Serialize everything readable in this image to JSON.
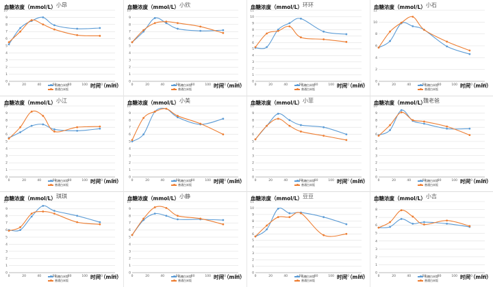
{
  "page": {
    "ylabel": "血糖浓度（mmol/L）",
    "xlabel": "时间（min）",
    "legend": [
      "低糖白米饭",
      "普通白米饭"
    ]
  },
  "colors": {
    "series_low_sugar": "#5B9BD5",
    "series_normal": "#ED7D31",
    "grid": "#d9d9d9",
    "axis": "#888888",
    "tick": "#555555"
  },
  "chart_data": [
    {
      "type": "line",
      "title": "小昂",
      "xlabel": "时间（min）",
      "ylabel": "血糖浓度（mmol/L）",
      "xlim": [
        0,
        140
      ],
      "ylim": [
        0,
        10
      ],
      "xticks": [
        0,
        20,
        40,
        60,
        80,
        100,
        120,
        140
      ],
      "yticks": [
        0,
        1,
        2,
        3,
        4,
        5,
        6,
        7,
        8,
        9,
        10
      ],
      "series": [
        {
          "name": "低糖白米饭",
          "x": [
            0,
            15,
            30,
            45,
            60,
            90,
            120
          ],
          "values": [
            5.2,
            7.5,
            8.5,
            9.0,
            7.9,
            7.4,
            7.5
          ]
        },
        {
          "name": "普通白米饭",
          "x": [
            0,
            15,
            30,
            45,
            60,
            90,
            120
          ],
          "values": [
            5.5,
            7.0,
            8.6,
            8.0,
            7.3,
            6.5,
            6.4
          ]
        }
      ]
    },
    {
      "type": "line",
      "title": "小欣",
      "xlabel": "时间（min）",
      "ylabel": "血糖浓度（mmol/L）",
      "xlim": [
        0,
        140
      ],
      "ylim": [
        0,
        10
      ],
      "xticks": [
        0,
        20,
        40,
        60,
        80,
        100,
        120,
        140
      ],
      "yticks": [
        0,
        1,
        2,
        3,
        4,
        5,
        6,
        7,
        8,
        9,
        10
      ],
      "series": [
        {
          "name": "低糖白米饭",
          "x": [
            0,
            15,
            30,
            45,
            60,
            90,
            120
          ],
          "values": [
            5.5,
            7.0,
            8.9,
            8.2,
            7.4,
            7.1,
            7.2
          ]
        },
        {
          "name": "普通白米饭",
          "x": [
            0,
            15,
            30,
            45,
            60,
            90,
            120
          ],
          "values": [
            5.5,
            7.2,
            8.2,
            8.4,
            8.2,
            7.7,
            6.8
          ]
        }
      ]
    },
    {
      "type": "line",
      "title": "环环",
      "xlabel": "时间（min）",
      "ylabel": "血糖浓度（mmol/L）",
      "xlim": [
        0,
        140
      ],
      "ylim": [
        0,
        11
      ],
      "xticks": [
        0,
        20,
        40,
        60,
        80,
        100,
        120,
        140
      ],
      "yticks": [
        0,
        1,
        2,
        3,
        4,
        5,
        6,
        7,
        8,
        9,
        10,
        11
      ],
      "series": [
        {
          "name": "低糖白米饭",
          "x": [
            0,
            15,
            30,
            45,
            60,
            90,
            120
          ],
          "values": [
            5.2,
            5.3,
            8.0,
            9.0,
            9.7,
            7.7,
            7.3
          ]
        },
        {
          "name": "普通白米饭",
          "x": [
            0,
            15,
            30,
            45,
            60,
            90,
            120
          ],
          "values": [
            5.3,
            7.4,
            7.8,
            8.5,
            6.8,
            6.5,
            6.1
          ]
        }
      ]
    },
    {
      "type": "line",
      "title": "小石",
      "xlabel": "时间（min）",
      "ylabel": "血糖浓度（mmol/L）",
      "xlim": [
        0,
        140
      ],
      "ylim": [
        0,
        12
      ],
      "xticks": [
        0,
        20,
        40,
        60,
        80,
        100,
        120,
        140
      ],
      "yticks": [
        0,
        2,
        4,
        6,
        8,
        10,
        12
      ],
      "series": [
        {
          "name": "低糖白米饭",
          "x": [
            0,
            15,
            30,
            45,
            60,
            90,
            120
          ],
          "values": [
            5.7,
            6.8,
            9.8,
            9.3,
            8.7,
            5.9,
            4.6
          ]
        },
        {
          "name": "普通白米饭",
          "x": [
            0,
            15,
            30,
            45,
            60,
            90,
            120
          ],
          "values": [
            5.7,
            8.4,
            9.9,
            10.9,
            8.7,
            6.7,
            5.2
          ]
        }
      ]
    },
    {
      "type": "line",
      "title": "小江",
      "xlabel": "时间（min）",
      "ylabel": "血糖浓度（mmol/L）",
      "xlim": [
        0,
        140
      ],
      "ylim": [
        0,
        10
      ],
      "xticks": [
        0,
        20,
        40,
        60,
        80,
        100,
        120,
        140
      ],
      "yticks": [
        0,
        1,
        2,
        3,
        4,
        5,
        6,
        7,
        8,
        9,
        10
      ],
      "series": [
        {
          "name": "低糖白米饭",
          "x": [
            0,
            15,
            30,
            45,
            60,
            90,
            120
          ],
          "values": [
            5.5,
            6.3,
            7.2,
            7.4,
            6.7,
            6.5,
            6.8
          ]
        },
        {
          "name": "普通白米饭",
          "x": [
            0,
            15,
            30,
            45,
            60,
            90,
            120
          ],
          "values": [
            5.4,
            7.0,
            9.2,
            8.6,
            6.4,
            7.0,
            7.1
          ]
        }
      ]
    },
    {
      "type": "line",
      "title": "小美",
      "xlabel": "时间（min）",
      "ylabel": "血糖浓度（mmol/L）",
      "xlim": [
        0,
        140
      ],
      "ylim": [
        0,
        10
      ],
      "xticks": [
        0,
        20,
        40,
        60,
        80,
        100,
        120,
        140
      ],
      "yticks": [
        0,
        1,
        2,
        3,
        4,
        5,
        6,
        7,
        8,
        9,
        10
      ],
      "series": [
        {
          "name": "低糖白米饭",
          "x": [
            0,
            15,
            30,
            45,
            60,
            90,
            120
          ],
          "values": [
            5.0,
            6.0,
            9.2,
            9.6,
            8.4,
            7.4,
            8.2
          ]
        },
        {
          "name": "普通白米饭",
          "x": [
            0,
            15,
            30,
            45,
            60,
            90,
            120
          ],
          "values": [
            5.2,
            8.3,
            9.2,
            9.6,
            8.6,
            7.5,
            6.0
          ]
        }
      ]
    },
    {
      "type": "line",
      "title": "小菲",
      "xlabel": "时间（min）",
      "ylabel": "血糖浓度（mmol/L）",
      "xlim": [
        0,
        140
      ],
      "ylim": [
        0,
        10
      ],
      "xticks": [
        0,
        20,
        40,
        60,
        80,
        100,
        120,
        140
      ],
      "yticks": [
        0,
        1,
        2,
        3,
        4,
        5,
        6,
        7,
        8,
        9,
        10
      ],
      "series": [
        {
          "name": "低糖白米饭",
          "x": [
            0,
            15,
            30,
            45,
            60,
            90,
            120
          ],
          "values": [
            5.3,
            7.2,
            8.9,
            8.0,
            7.3,
            7.0,
            6.0
          ]
        },
        {
          "name": "普通白米饭",
          "x": [
            0,
            15,
            30,
            45,
            60,
            90,
            120
          ],
          "values": [
            5.3,
            7.2,
            8.2,
            7.2,
            6.4,
            5.8,
            5.2
          ]
        }
      ]
    },
    {
      "type": "line",
      "title": "魏老爸",
      "xlabel": "时间（min）",
      "ylabel": "血糖浓度（mmol/L）",
      "xlim": [
        0,
        140
      ],
      "ylim": [
        0,
        10
      ],
      "xticks": [
        0,
        20,
        40,
        60,
        80,
        100,
        120,
        140
      ],
      "yticks": [
        0,
        1,
        2,
        3,
        4,
        5,
        6,
        7,
        8,
        9,
        10
      ],
      "series": [
        {
          "name": "低糖白米饭",
          "x": [
            0,
            15,
            30,
            45,
            60,
            90,
            120
          ],
          "values": [
            5.9,
            6.6,
            9.4,
            7.9,
            7.5,
            6.8,
            6.8
          ]
        },
        {
          "name": "普通白米饭",
          "x": [
            0,
            15,
            30,
            45,
            60,
            90,
            120
          ],
          "values": [
            5.8,
            7.3,
            9.1,
            8.0,
            7.8,
            7.1,
            5.9
          ]
        }
      ]
    },
    {
      "type": "line",
      "title": "琪琪",
      "xlabel": "时间（min）",
      "ylabel": "血糖浓度（mmol/L）",
      "xlim": [
        0,
        140
      ],
      "ylim": [
        0,
        10
      ],
      "xticks": [
        0,
        20,
        40,
        60,
        80,
        100,
        120,
        140
      ],
      "yticks": [
        0,
        1,
        2,
        3,
        4,
        5,
        6,
        7,
        8,
        9,
        10
      ],
      "series": [
        {
          "name": "低糖白米饭",
          "x": [
            0,
            15,
            30,
            45,
            60,
            90,
            120
          ],
          "values": [
            6.0,
            6.0,
            7.9,
            9.4,
            8.7,
            8.0,
            7.1
          ]
        },
        {
          "name": "普通白米饭",
          "x": [
            0,
            15,
            30,
            45,
            60,
            90,
            120
          ],
          "values": [
            5.9,
            6.4,
            8.3,
            8.6,
            8.3,
            7.1,
            6.8
          ]
        }
      ]
    },
    {
      "type": "line",
      "title": "小静",
      "xlabel": "时间（min）",
      "ylabel": "血糖浓度（mmol/L）",
      "xlim": [
        0,
        140
      ],
      "ylim": [
        0,
        10
      ],
      "xticks": [
        0,
        20,
        40,
        60,
        80,
        100,
        120,
        140
      ],
      "yticks": [
        0,
        1,
        2,
        3,
        4,
        5,
        6,
        7,
        8,
        9,
        10
      ],
      "series": [
        {
          "name": "低糖白米饭",
          "x": [
            0,
            15,
            30,
            45,
            60,
            90,
            120
          ],
          "values": [
            5.3,
            7.4,
            8.3,
            8.0,
            7.5,
            7.5,
            7.4
          ]
        },
        {
          "name": "普通白米饭",
          "x": [
            0,
            15,
            30,
            45,
            60,
            90,
            120
          ],
          "values": [
            5.3,
            7.6,
            9.2,
            9.1,
            8.0,
            7.6,
            6.8
          ]
        }
      ]
    },
    {
      "type": "line",
      "title": "豆豆",
      "xlabel": "时间（min）",
      "ylabel": "血糖浓度（mmol/L）",
      "xlim": [
        0,
        140
      ],
      "ylim": [
        0,
        11
      ],
      "xticks": [
        0,
        20,
        40,
        60,
        80,
        100,
        120,
        140
      ],
      "yticks": [
        0,
        1,
        2,
        3,
        4,
        5,
        6,
        7,
        8,
        9,
        10,
        11
      ],
      "series": [
        {
          "name": "低糖白米饭",
          "x": [
            0,
            15,
            30,
            45,
            60,
            90,
            120
          ],
          "values": [
            5.6,
            6.7,
            9.9,
            9.2,
            9.3,
            8.6,
            7.5
          ]
        },
        {
          "name": "普通白米饭",
          "x": [
            0,
            15,
            30,
            45,
            60,
            90,
            120
          ],
          "values": [
            5.6,
            7.3,
            8.6,
            8.6,
            9.2,
            5.8,
            6.0
          ]
        }
      ]
    },
    {
      "type": "line",
      "title": "小吉",
      "xlabel": "时间（min）",
      "ylabel": "血糖浓度（mmol/L）",
      "xlim": [
        0,
        140
      ],
      "ylim": [
        0,
        9
      ],
      "xticks": [
        0,
        20,
        40,
        60,
        80,
        100,
        120,
        140
      ],
      "yticks": [
        0,
        1,
        2,
        3,
        4,
        5,
        6,
        7,
        8,
        9
      ],
      "series": [
        {
          "name": "低糖白米饭",
          "x": [
            0,
            15,
            30,
            45,
            60,
            90,
            120
          ],
          "values": [
            5.7,
            5.8,
            6.8,
            6.2,
            6.4,
            6.2,
            5.8
          ]
        },
        {
          "name": "普通白米饭",
          "x": [
            0,
            15,
            30,
            45,
            60,
            90,
            120
          ],
          "values": [
            5.7,
            6.4,
            7.9,
            7.1,
            6.1,
            6.6,
            5.9
          ]
        }
      ]
    }
  ]
}
